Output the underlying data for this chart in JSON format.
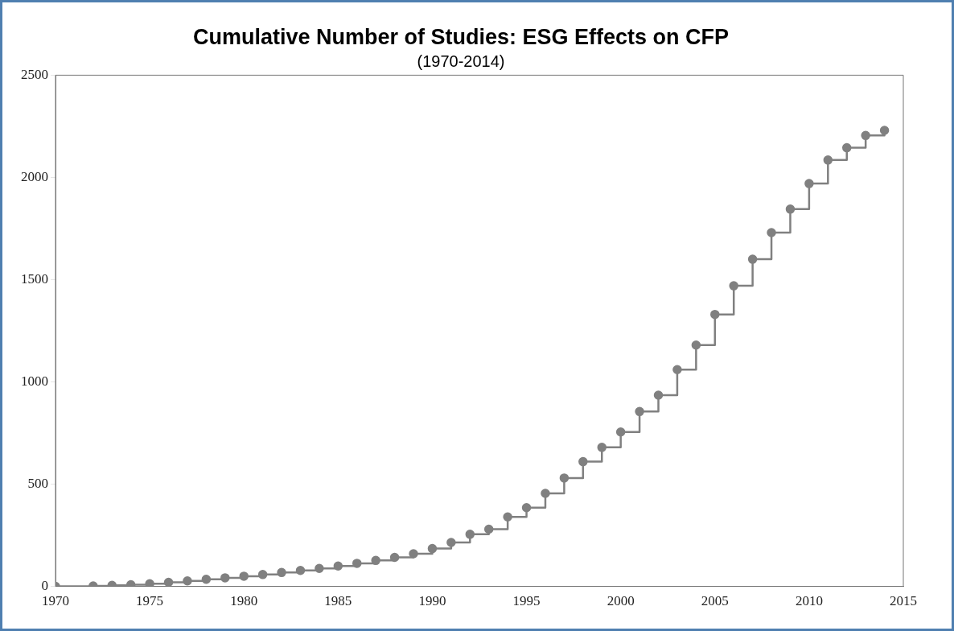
{
  "chart_data": {
    "type": "step",
    "title": "Cumulative Number of Studies: ESG Effects on CFP",
    "subtitle": "(1970-2014)",
    "x": [
      1970,
      1972,
      1973,
      1974,
      1975,
      1976,
      1977,
      1978,
      1979,
      1980,
      1981,
      1982,
      1983,
      1984,
      1985,
      1986,
      1987,
      1988,
      1989,
      1990,
      1991,
      1992,
      1993,
      1994,
      1995,
      1996,
      1997,
      1998,
      1999,
      2000,
      2001,
      2002,
      2003,
      2004,
      2005,
      2006,
      2007,
      2008,
      2009,
      2010,
      2011,
      2012,
      2013,
      2014
    ],
    "series": [
      {
        "color": "#808080",
        "values": [
          0,
          2,
          5,
          8,
          13,
          20,
          27,
          35,
          42,
          50,
          58,
          68,
          78,
          88,
          100,
          113,
          127,
          142,
          160,
          185,
          215,
          255,
          280,
          340,
          385,
          455,
          530,
          610,
          680,
          755,
          855,
          935,
          1060,
          1180,
          1330,
          1470,
          1600,
          1730,
          1845,
          1970,
          2085,
          2145,
          2205,
          2230
        ]
      }
    ],
    "xlim": [
      1970,
      2015
    ],
    "xticks": [
      1970,
      1975,
      1980,
      1985,
      1990,
      1995,
      2000,
      2005,
      2010,
      2015
    ],
    "ylim": [
      0,
      2500
    ],
    "yticks": [
      0,
      500,
      1000,
      1500,
      2000,
      2500
    ],
    "grid": false,
    "legend": false,
    "marker": "circle",
    "line_style": "solid"
  }
}
